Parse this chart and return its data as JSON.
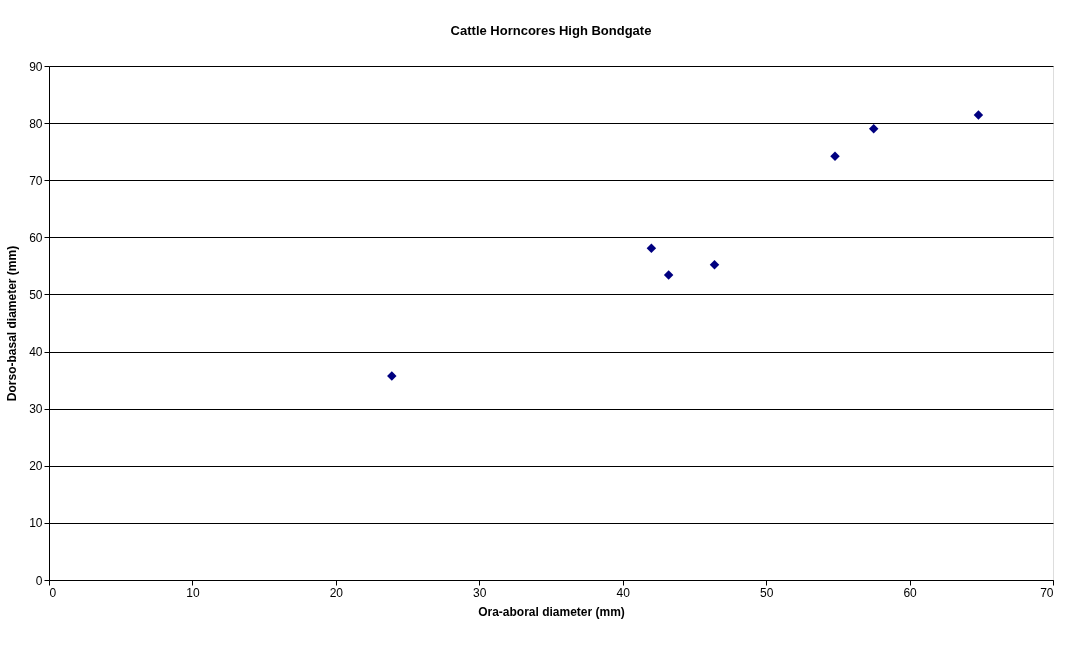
{
  "chart_data": {
    "type": "scatter",
    "title": "Cattle Horncores High Bondgate",
    "xlabel": "Ora-aboral diameter (mm)",
    "ylabel": "Dorso-basal diameter (mm)",
    "x": [
      23.9,
      42.0,
      43.2,
      46.4,
      54.8,
      57.5,
      64.8
    ],
    "series": [
      {
        "color": "#000080",
        "values": [
          35.7,
          58.1,
          53.4,
          55.2,
          74.2,
          79.0,
          81.4
        ]
      }
    ],
    "xlim": [
      0,
      70
    ],
    "xticks": [
      0,
      10,
      20,
      30,
      40,
      50,
      60,
      70
    ],
    "ylim": [
      0,
      90
    ],
    "yticks": [
      0,
      10,
      20,
      30,
      40,
      50,
      60,
      70,
      80,
      90
    ],
    "grid": "y",
    "marker": "diamond",
    "legend": false
  }
}
